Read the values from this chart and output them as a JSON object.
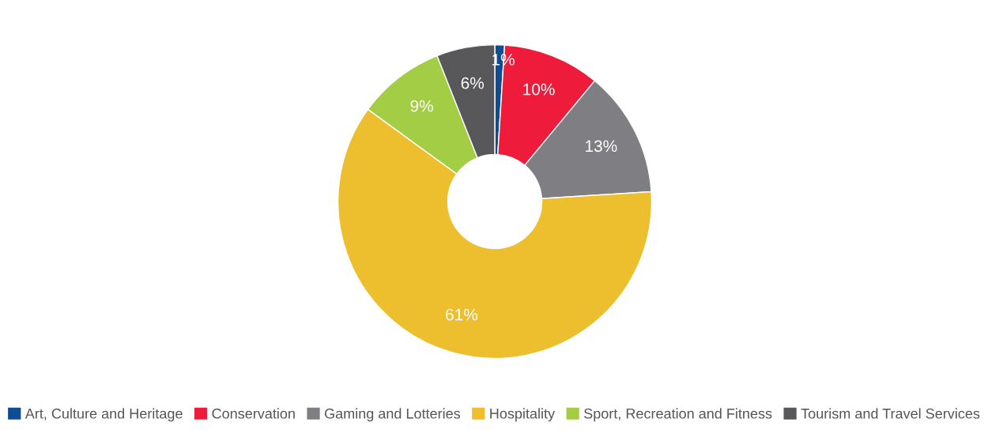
{
  "chart_data": {
    "type": "donut",
    "categories": [
      "Art, Culture and Heritage",
      "Conservation",
      "Gaming and Lotteries",
      "Hospitality",
      "Sport, Recreation and Fitness",
      "Tourism and Travel Services"
    ],
    "values": [
      1,
      10,
      13,
      61,
      9,
      6
    ],
    "colors": [
      "#0f4c92",
      "#ee1c3a",
      "#7f7f83",
      "#edbe2e",
      "#a2cd45",
      "#58585a"
    ],
    "value_labels": [
      "1%",
      "10%",
      "13%",
      "61%",
      "9%",
      "6%"
    ],
    "legend": "bottom"
  }
}
